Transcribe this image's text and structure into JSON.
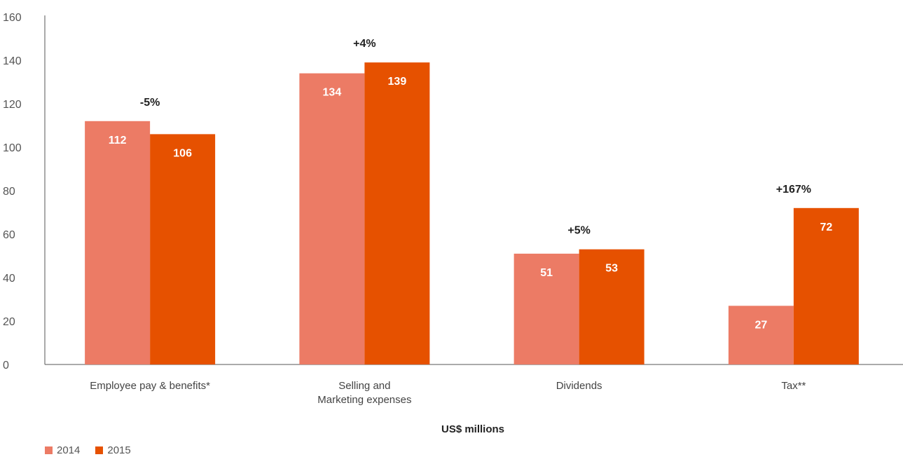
{
  "chart_data": {
    "type": "bar",
    "categories": [
      [
        "Employee pay & benefits*"
      ],
      [
        "Selling and",
        "Marketing expenses"
      ],
      [
        "Dividends"
      ],
      [
        "Tax**"
      ]
    ],
    "series": [
      {
        "name": "2014",
        "color": "#EC7B65",
        "values": [
          112,
          134,
          51,
          27
        ]
      },
      {
        "name": "2015",
        "color": "#E65100",
        "values": [
          106,
          139,
          53,
          72
        ]
      }
    ],
    "change_labels": [
      "-5%",
      "+4%",
      "+5%",
      "+167%"
    ],
    "xlabel": "US$ millions",
    "ylabel": "",
    "ylim": [
      0,
      160
    ],
    "yticks": [
      0,
      20,
      40,
      60,
      80,
      100,
      120,
      140,
      160
    ],
    "grid": false,
    "legend_position": "bottom-left"
  }
}
